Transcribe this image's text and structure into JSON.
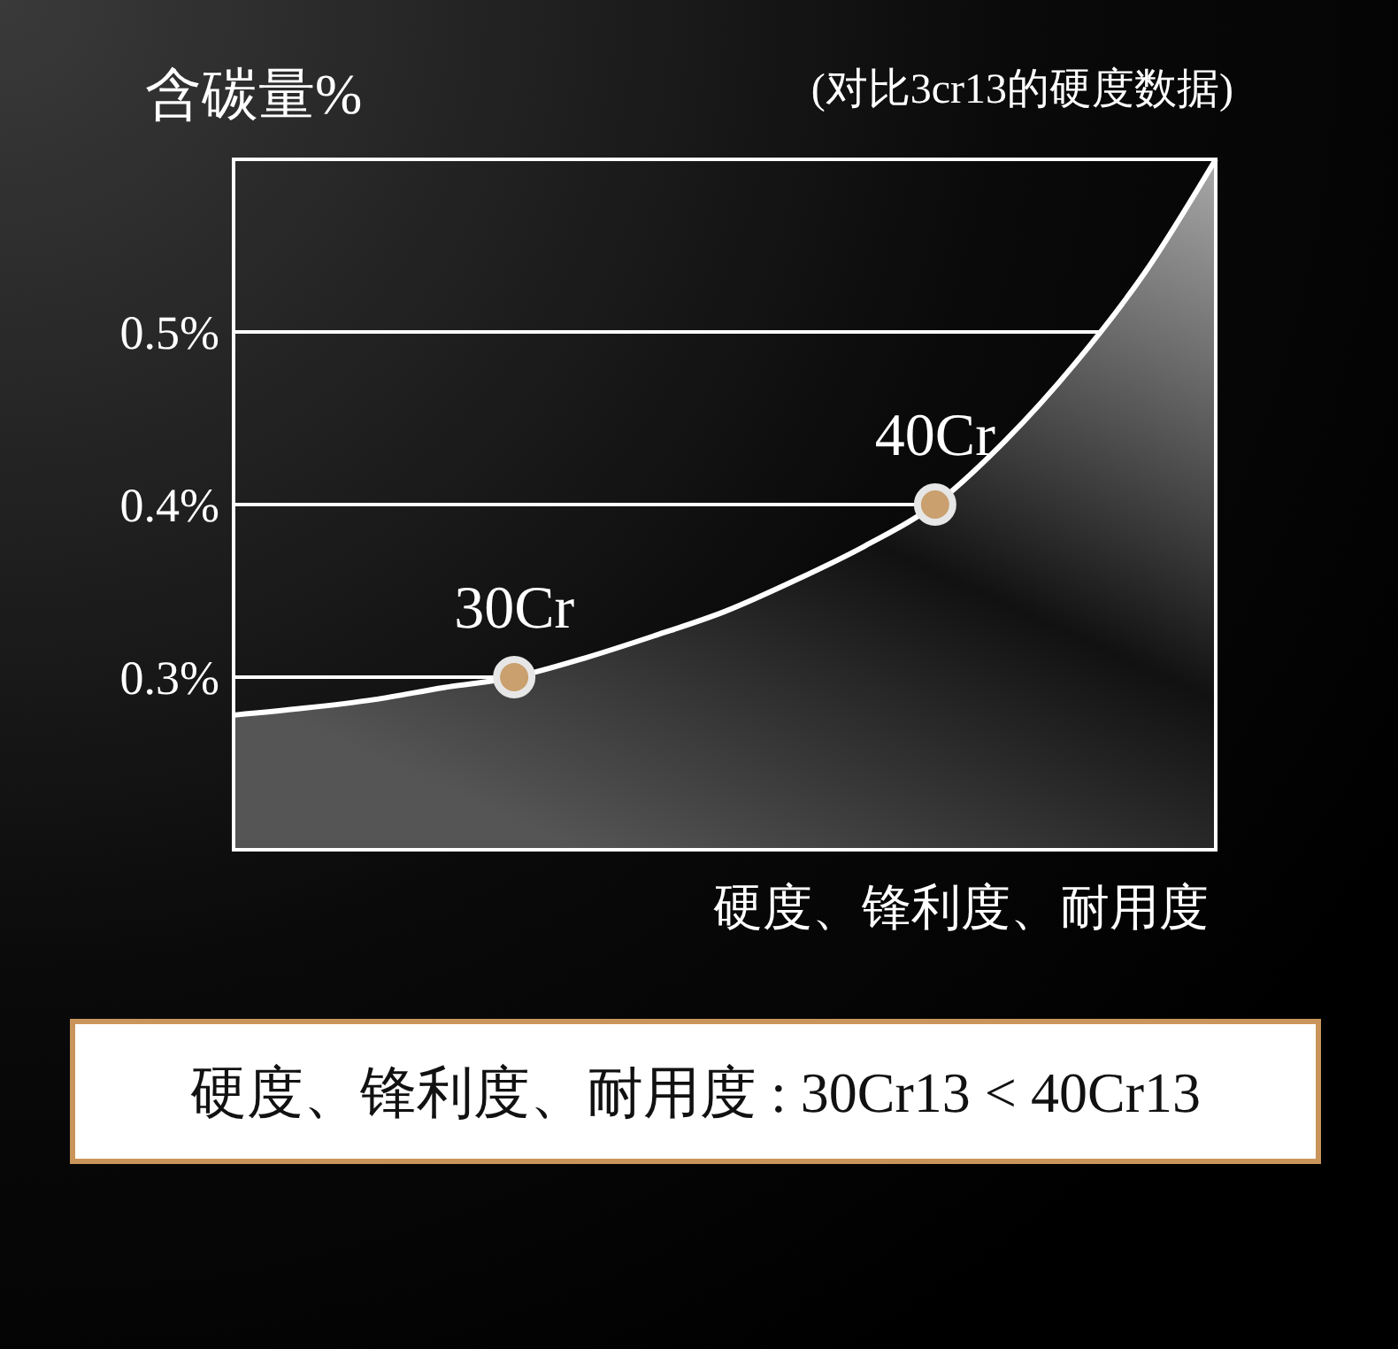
{
  "chart_data": {
    "type": "area",
    "title": "含碳量%",
    "subtitle": "(对比3cr13的硬度数据)",
    "xlabel": "硬度、锋利度、耐用度",
    "annotations": [
      "硬度、锋利度、耐用度 : 30Cr13 < 40Cr13"
    ],
    "categories": [
      null,
      null,
      null,
      null,
      null,
      null,
      null,
      null,
      null,
      null,
      null,
      null,
      null,
      null,
      null
    ],
    "ylim": [
      0.2,
      0.6
    ],
    "yticks": [
      {
        "value": 0.3,
        "label": "0.3%"
      },
      {
        "value": 0.4,
        "label": "0.4%"
      },
      {
        "value": 0.5,
        "label": "0.5%"
      }
    ],
    "grid": "y",
    "tick_labels": "y",
    "series": [
      {
        "color": "#ffffff",
        "values": [
          0.278,
          0.282,
          0.287,
          0.294,
          0.3,
          0.311,
          0.324,
          0.338,
          0.356,
          0.376,
          0.4,
          0.437,
          0.482,
          0.535,
          0.6
        ]
      },
      {
        "type": "scatter",
        "name": "30Cr",
        "marker": "circle",
        "color": "#c9a06e",
        "values": [
          null,
          null,
          null,
          null,
          0.3,
          null,
          null,
          null,
          null,
          null,
          null,
          null,
          null,
          null,
          null
        ]
      },
      {
        "type": "scatter",
        "name": "40Cr",
        "marker": "circle",
        "color": "#c9a06e",
        "values": [
          null,
          null,
          null,
          null,
          null,
          null,
          null,
          null,
          null,
          null,
          0.4,
          null,
          null,
          null,
          null
        ]
      }
    ]
  }
}
